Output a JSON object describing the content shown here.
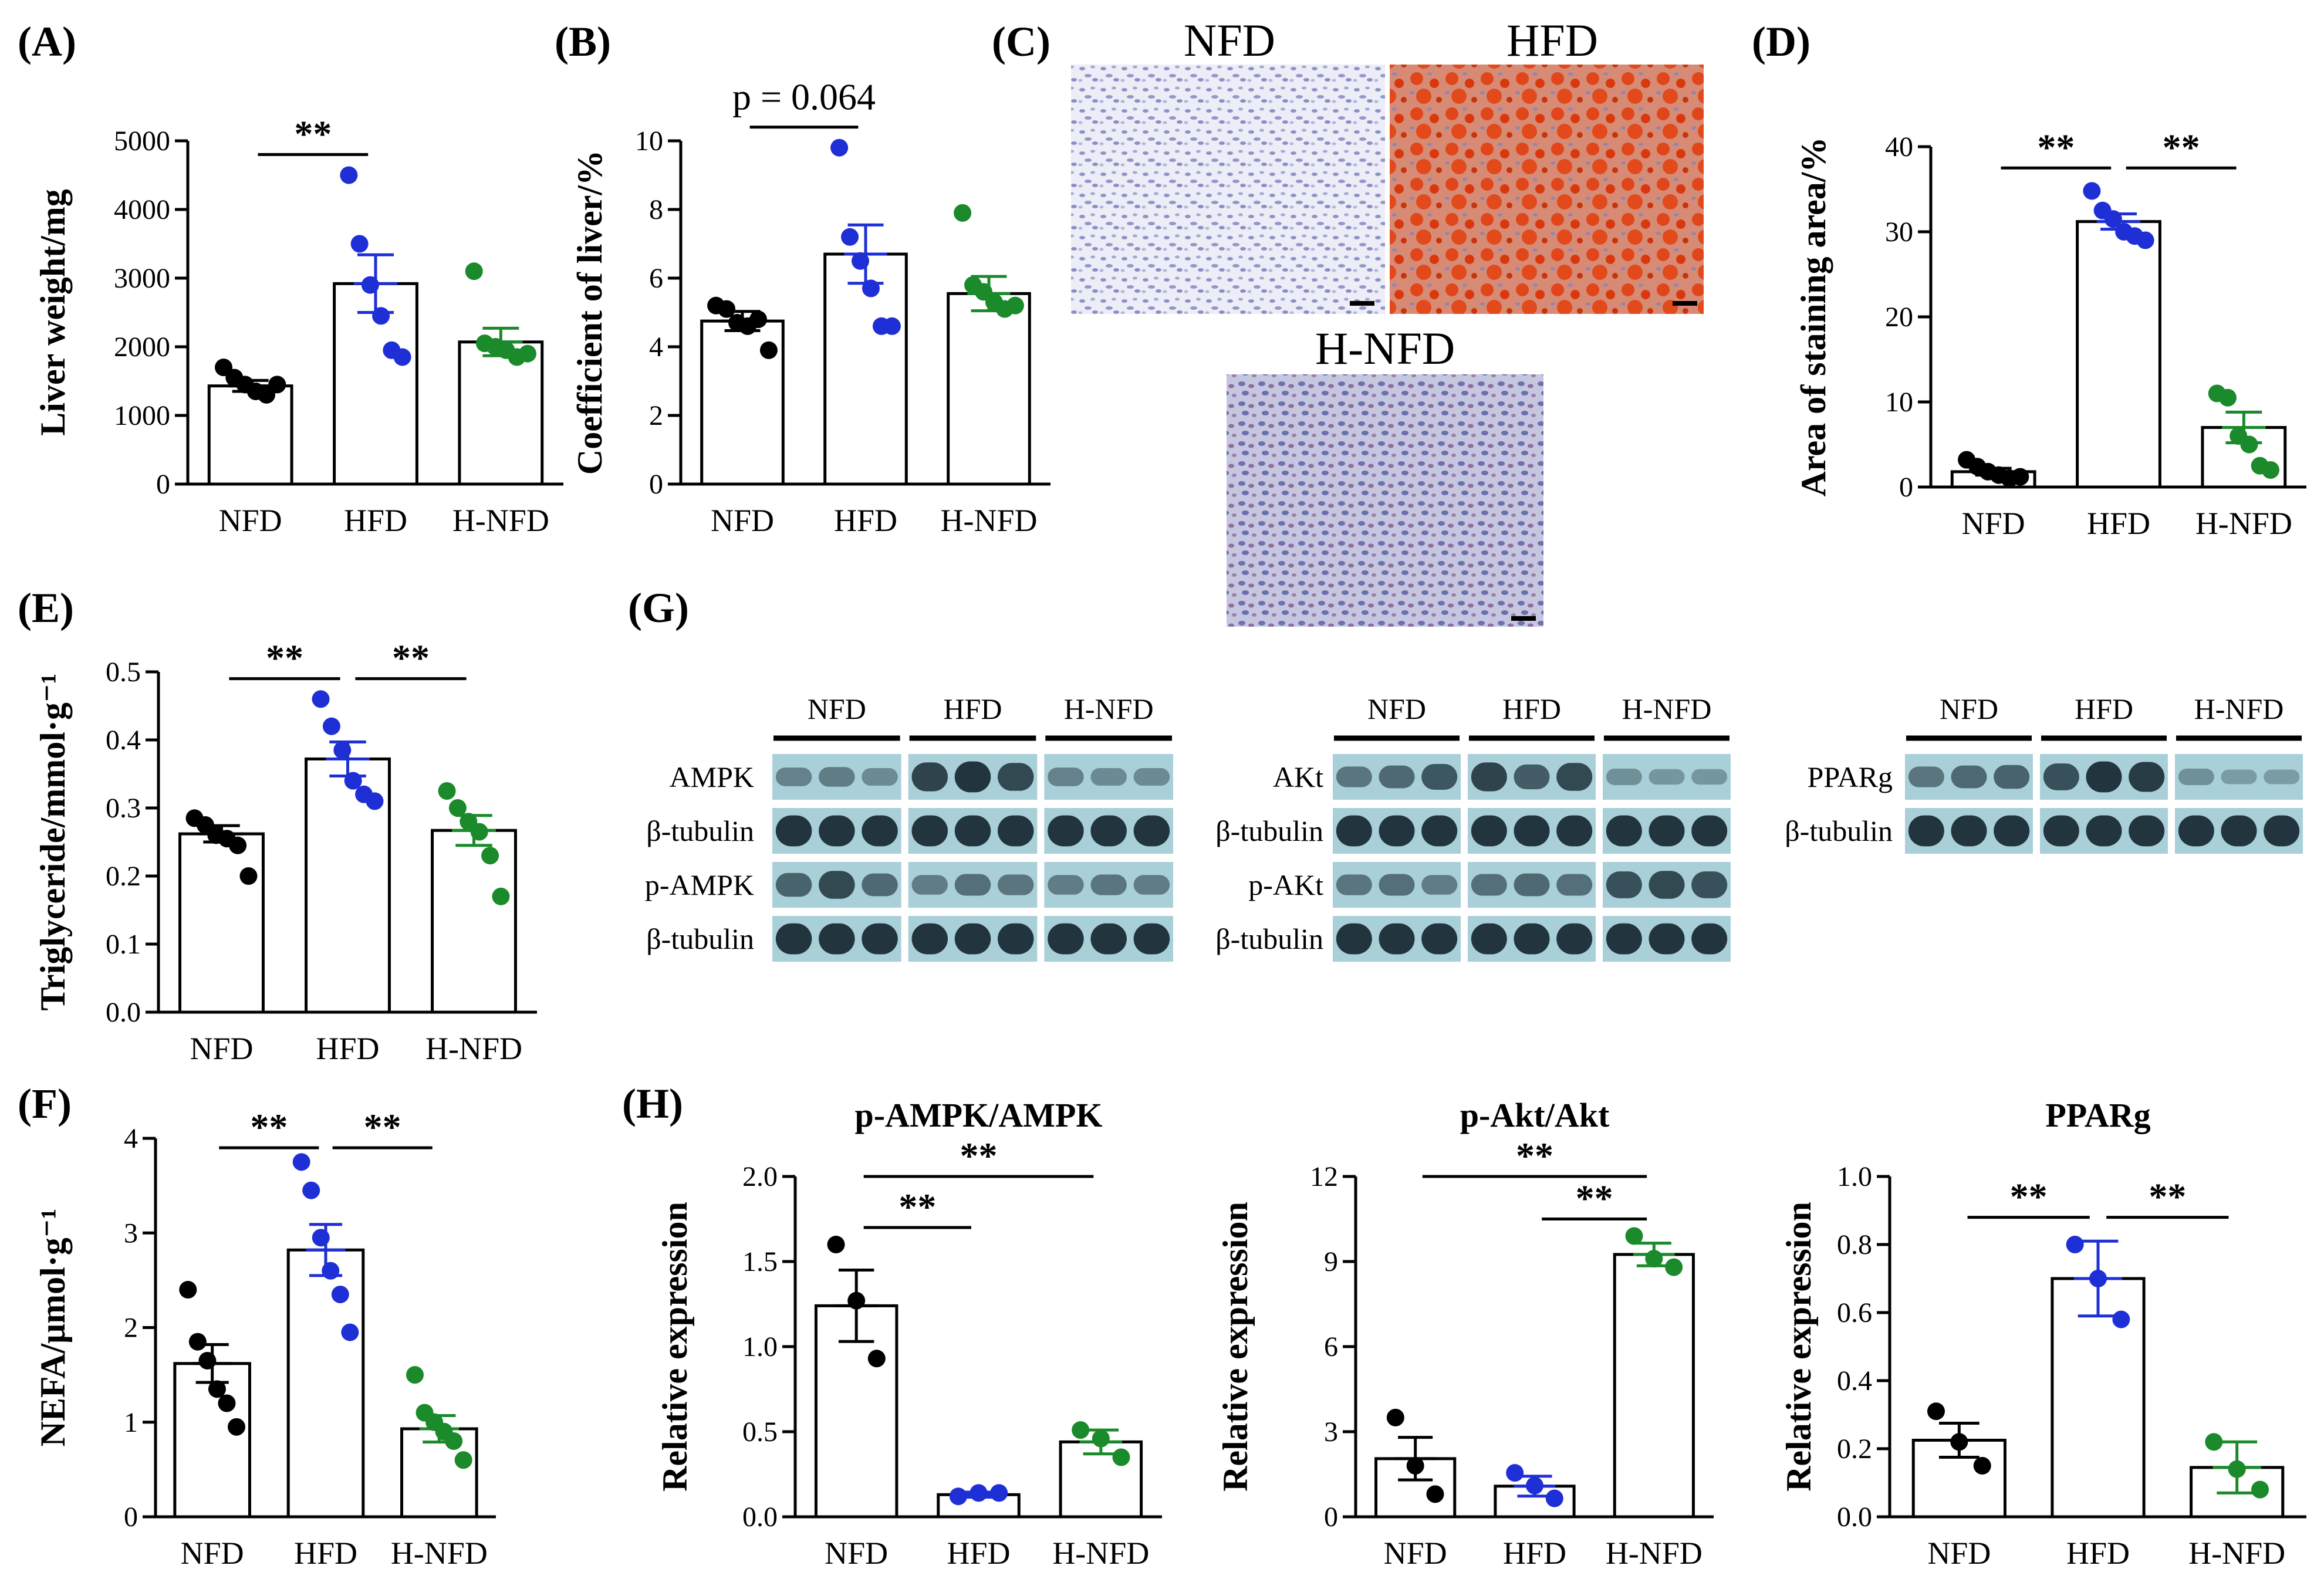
{
  "colors": {
    "NFD": "#000000",
    "HFD": "#1f2fd6",
    "H-NFD": "#1a8a2a",
    "bar_fill": "#ffffff",
    "axis": "#000000",
    "blot_bg": "#a9d0d9",
    "blot_band": "#1c2f38"
  },
  "chart_data": [
    {
      "id": "A",
      "panel_label": "(A)",
      "type": "bar",
      "ylabel": "Liver weight/mg",
      "ylim": [
        0,
        5000
      ],
      "yticks": [
        0,
        1000,
        2000,
        3000,
        4000,
        5000
      ],
      "ytick_labels": [
        "0",
        "1000",
        "2000",
        "3000",
        "4000",
        "5000"
      ],
      "categories": [
        "NFD",
        "HFD",
        "H-NFD"
      ],
      "values": [
        1430,
        2920,
        2070
      ],
      "sem": [
        80,
        420,
        200
      ],
      "points": [
        [
          1700,
          1550,
          1450,
          1350,
          1300,
          1450
        ],
        [
          4500,
          3500,
          2900,
          2450,
          1950,
          1850
        ],
        [
          3100,
          2050,
          2000,
          1950,
          1850,
          1900
        ]
      ],
      "annotations": [
        {
          "from": 0,
          "to": 1,
          "text": "**",
          "y": 4800
        }
      ]
    },
    {
      "id": "B",
      "panel_label": "(B)",
      "type": "bar",
      "ylabel": "Coefficient of liver/%",
      "ylim": [
        0,
        10
      ],
      "yticks": [
        0,
        2,
        4,
        6,
        8,
        10
      ],
      "ytick_labels": [
        "0",
        "2",
        "4",
        "6",
        "8",
        "10"
      ],
      "categories": [
        "NFD",
        "HFD",
        "H-NFD"
      ],
      "values": [
        4.75,
        6.7,
        5.55
      ],
      "sem": [
        0.28,
        0.85,
        0.5
      ],
      "points": [
        [
          5.2,
          5.1,
          4.7,
          4.6,
          4.8,
          3.9
        ],
        [
          9.8,
          7.2,
          6.5,
          5.7,
          4.6,
          4.6
        ],
        [
          7.9,
          5.8,
          5.6,
          5.3,
          5.1,
          5.2
        ]
      ],
      "annotations": [
        {
          "from": 0,
          "to": 1,
          "text": "p = 0.064",
          "y": 10.4
        }
      ]
    },
    {
      "id": "D",
      "panel_label": "(D)",
      "type": "bar",
      "ylabel": "Area of staining area/%",
      "ylim": [
        0,
        40
      ],
      "yticks": [
        0,
        10,
        20,
        30,
        40
      ],
      "ytick_labels": [
        "0",
        "10",
        "20",
        "30",
        "40"
      ],
      "categories": [
        "NFD",
        "HFD",
        "H-NFD"
      ],
      "values": [
        1.8,
        31.2,
        7.0
      ],
      "sem": [
        0.4,
        0.9,
        1.8
      ],
      "points": [
        [
          3.2,
          2.4,
          1.8,
          1.4,
          1.0,
          1.2
        ],
        [
          34.8,
          32.5,
          31.5,
          30.0,
          29.5,
          29.0
        ],
        [
          11.0,
          10.5,
          6.0,
          5.0,
          2.5,
          2.0
        ]
      ],
      "annotations": [
        {
          "from": 0,
          "to": 1,
          "text": "**",
          "y": 37.5
        },
        {
          "from": 1,
          "to": 2,
          "text": "**",
          "y": 37.5
        }
      ]
    },
    {
      "id": "E",
      "panel_label": "(E)",
      "type": "bar",
      "ylabel": "Triglyceride/mmol·g⁻¹",
      "ylim": [
        0,
        0.5
      ],
      "yticks": [
        0,
        0.1,
        0.2,
        0.3,
        0.4,
        0.5
      ],
      "ytick_labels": [
        "0.0",
        "0.1",
        "0.2",
        "0.3",
        "0.4",
        "0.5"
      ],
      "categories": [
        "NFD",
        "HFD",
        "H-NFD"
      ],
      "values": [
        0.262,
        0.372,
        0.267
      ],
      "sem": [
        0.012,
        0.025,
        0.022
      ],
      "points": [
        [
          0.285,
          0.275,
          0.26,
          0.255,
          0.245,
          0.2
        ],
        [
          0.46,
          0.42,
          0.385,
          0.34,
          0.32,
          0.31
        ],
        [
          0.325,
          0.3,
          0.28,
          0.265,
          0.23,
          0.17
        ]
      ],
      "annotations": [
        {
          "from": 0,
          "to": 1,
          "text": "**",
          "y": 0.49
        },
        {
          "from": 1,
          "to": 2,
          "text": "**",
          "y": 0.49
        }
      ]
    },
    {
      "id": "F",
      "panel_label": "(F)",
      "type": "bar",
      "ylabel": "NEFA/μmol·g⁻¹",
      "ylim": [
        0,
        4
      ],
      "yticks": [
        0,
        1,
        2,
        3,
        4
      ],
      "ytick_labels": [
        "0",
        "1",
        "2",
        "3",
        "4"
      ],
      "categories": [
        "NFD",
        "HFD",
        "H-NFD"
      ],
      "values": [
        1.62,
        2.82,
        0.93
      ],
      "sem": [
        0.2,
        0.27,
        0.14
      ],
      "points": [
        [
          2.4,
          1.85,
          1.65,
          1.35,
          1.2,
          0.95
        ],
        [
          3.75,
          3.45,
          2.95,
          2.6,
          2.35,
          1.95
        ],
        [
          1.5,
          1.1,
          1.0,
          0.9,
          0.8,
          0.6
        ]
      ],
      "annotations": [
        {
          "from": 0,
          "to": 1,
          "text": "**",
          "y": 3.9
        },
        {
          "from": 1,
          "to": 2,
          "text": "**",
          "y": 3.9
        }
      ]
    },
    {
      "id": "H1",
      "panel_label": "(H)",
      "title": "p-AMPK/AMPK",
      "type": "bar",
      "ylabel": "Relative expression",
      "ylim": [
        0,
        2
      ],
      "yticks": [
        0,
        0.5,
        1,
        1.5,
        2
      ],
      "ytick_labels": [
        "0.0",
        "0.5",
        "1.0",
        "1.5",
        "2.0"
      ],
      "categories": [
        "NFD",
        "HFD",
        "H-NFD"
      ],
      "values": [
        1.24,
        0.13,
        0.44
      ],
      "sem": [
        0.21,
        0.015,
        0.07
      ],
      "points": [
        [
          1.6,
          1.27,
          0.93
        ],
        [
          0.12,
          0.14,
          0.14
        ],
        [
          0.51,
          0.46,
          0.35
        ]
      ],
      "annotations": [
        {
          "from": 0,
          "to": 1,
          "text": "**",
          "y": 1.7
        },
        {
          "from": 0,
          "to": 2,
          "text": "**",
          "y": 2.0
        }
      ]
    },
    {
      "id": "H2",
      "panel_label": "",
      "title": "p-Akt/Akt",
      "type": "bar",
      "ylabel": "Relative expression",
      "ylim": [
        0,
        12
      ],
      "yticks": [
        0,
        3,
        6,
        9,
        12
      ],
      "ytick_labels": [
        "0",
        "3",
        "6",
        "9",
        "12"
      ],
      "categories": [
        "NFD",
        "HFD",
        "H-NFD"
      ],
      "values": [
        2.05,
        1.08,
        9.25
      ],
      "sem": [
        0.75,
        0.35,
        0.4
      ],
      "points": [
        [
          3.5,
          1.8,
          0.8
        ],
        [
          1.55,
          1.1,
          0.65
        ],
        [
          9.9,
          9.1,
          8.8
        ]
      ],
      "annotations": [
        {
          "from": 1,
          "to": 2,
          "text": "**",
          "y": 10.5
        },
        {
          "from": 0,
          "to": 2,
          "text": "**",
          "y": 12.0
        }
      ]
    },
    {
      "id": "H3",
      "panel_label": "",
      "title": "PPARg",
      "type": "bar",
      "ylabel": "Relative expression",
      "ylim": [
        0,
        1
      ],
      "yticks": [
        0,
        0.2,
        0.4,
        0.6,
        0.8,
        1
      ],
      "ytick_labels": [
        "0.0",
        "0.2",
        "0.4",
        "0.6",
        "0.8",
        "1.0"
      ],
      "categories": [
        "NFD",
        "HFD",
        "H-NFD"
      ],
      "values": [
        0.225,
        0.7,
        0.145
      ],
      "sem": [
        0.05,
        0.11,
        0.075
      ],
      "points": [
        [
          0.31,
          0.22,
          0.15
        ],
        [
          0.8,
          0.7,
          0.58
        ],
        [
          0.22,
          0.14,
          0.08
        ]
      ],
      "annotations": [
        {
          "from": 0,
          "to": 1,
          "text": "**",
          "y": 0.88
        },
        {
          "from": 1,
          "to": 2,
          "text": "**",
          "y": 0.88
        }
      ]
    }
  ],
  "histology": {
    "panel_label": "(C)",
    "labels": [
      "NFD",
      "HFD",
      "H-NFD"
    ]
  },
  "western": {
    "panel_label": "(G)",
    "groups": [
      "NFD",
      "HFD",
      "H-NFD"
    ],
    "blocks": [
      {
        "rows": [
          {
            "label": "AMPK",
            "levels": [
              0.35,
              0.4,
              0.3,
              0.85,
              0.95,
              0.8,
              0.35,
              0.3,
              0.3
            ]
          },
          {
            "label": "β-tubulin",
            "levels": [
              0.95,
              0.95,
              0.95,
              0.95,
              0.95,
              0.95,
              0.95,
              0.95,
              0.95
            ]
          },
          {
            "label": "p-AMPK",
            "levels": [
              0.6,
              0.8,
              0.55,
              0.4,
              0.5,
              0.45,
              0.4,
              0.45,
              0.4
            ]
          },
          {
            "label": "β-tubulin",
            "levels": [
              0.95,
              0.95,
              0.95,
              0.95,
              0.95,
              0.95,
              0.95,
              0.95,
              0.95
            ]
          }
        ]
      },
      {
        "rows": [
          {
            "label": "AKt",
            "levels": [
              0.45,
              0.55,
              0.7,
              0.85,
              0.65,
              0.8,
              0.25,
              0.2,
              0.2
            ]
          },
          {
            "label": "β-tubulin",
            "levels": [
              0.95,
              0.95,
              0.95,
              0.95,
              0.95,
              0.95,
              0.95,
              0.95,
              0.95
            ]
          },
          {
            "label": "p-AKt",
            "levels": [
              0.45,
              0.5,
              0.4,
              0.5,
              0.55,
              0.5,
              0.75,
              0.8,
              0.75
            ]
          },
          {
            "label": "β-tubulin",
            "levels": [
              0.95,
              0.95,
              0.95,
              0.95,
              0.95,
              0.95,
              0.95,
              0.95,
              0.95
            ]
          }
        ]
      },
      {
        "rows": [
          {
            "label": "PPARg",
            "levels": [
              0.45,
              0.55,
              0.6,
              0.75,
              0.95,
              0.9,
              0.25,
              0.15,
              0.15
            ]
          },
          {
            "label": "β-tubulin",
            "levels": [
              0.95,
              0.95,
              0.95,
              0.95,
              0.95,
              0.95,
              0.95,
              0.95,
              0.95
            ]
          }
        ]
      }
    ]
  }
}
